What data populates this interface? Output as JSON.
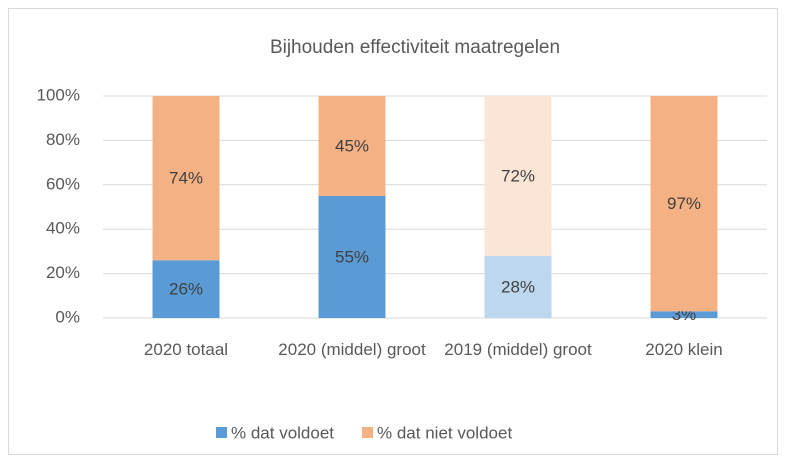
{
  "chart_data": {
    "type": "stacked_bar",
    "title": "Bijhouden effectiviteit maatregelen",
    "categories": [
      "2020 totaal",
      "2020 (middel) groot",
      "2019 (middel) groot",
      "2020 klein"
    ],
    "series": [
      {
        "name": "% dat voldoet",
        "color": "#5b9bd5",
        "colors": [
          "#5b9bd5",
          "#5b9bd5",
          "#bdd7ee",
          "#5b9bd5"
        ],
        "values": [
          26,
          55,
          28,
          3
        ],
        "value_labels": [
          "26%",
          "55%",
          "28%",
          "3%"
        ]
      },
      {
        "name": "% dat niet voldoet",
        "color": "#f4b183",
        "colors": [
          "#f4b183",
          "#f4b183",
          "#fbe5d6",
          "#f4b183"
        ],
        "values": [
          74,
          45,
          72,
          97
        ],
        "value_labels": [
          "74%",
          "45%",
          "72%",
          "97%"
        ]
      }
    ],
    "ylim": [
      0,
      100
    ],
    "yticks": [
      {
        "value": 0,
        "label": "0%"
      },
      {
        "value": 20,
        "label": "20%"
      },
      {
        "value": 40,
        "label": "40%"
      },
      {
        "value": 60,
        "label": "60%"
      },
      {
        "value": 80,
        "label": "80%"
      },
      {
        "value": 100,
        "label": "100%"
      }
    ],
    "grid": true,
    "legend": "bottom"
  }
}
